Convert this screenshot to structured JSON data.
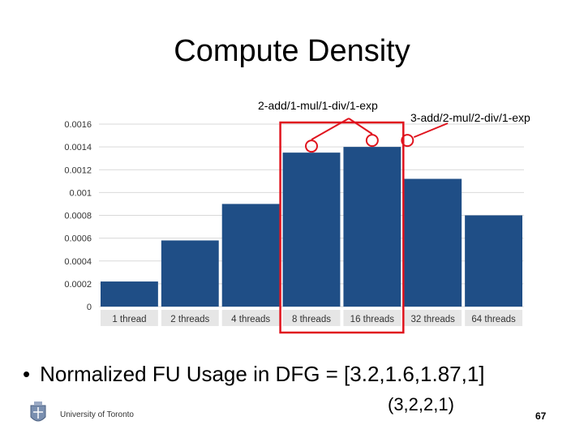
{
  "slide": {
    "title": "Compute Density",
    "annotation_left": "2-add/1-mul/1-div/1-exp",
    "annotation_right": "3-add/2-mul/2-div/1-exp",
    "bullet_marker": "•",
    "bullet": "Normalized FU Usage in DFG = [3.2,1.6,1.87,1]",
    "paren_values": "(3,2,2,1)",
    "university": "University of Toronto",
    "page_number": "67"
  },
  "colors": {
    "bar": "#1f4e86",
    "highlight": "#e0141e",
    "grid": "#d9d9d9",
    "label_box": "#e6e6e6"
  },
  "chart_data": {
    "type": "bar",
    "title": "",
    "ylim": [
      0,
      0.0016
    ],
    "yticks": [
      "0.0016",
      "0.0014",
      "0.0012",
      "0.001",
      "0.0008",
      "0.0006",
      "0.0004",
      "0.0002",
      "0"
    ],
    "grid": true,
    "categories": [
      "1 thread",
      "2 threads",
      "4 threads",
      "8 threads",
      "16 threads",
      "32 threads",
      "64 threads"
    ],
    "series": [
      {
        "values": [
          0.00022,
          0.00058,
          0.0009,
          0.00135,
          0.0014,
          0.00112,
          0.0008
        ]
      }
    ],
    "highlighted_categories": [
      "8 threads",
      "16 threads"
    ]
  }
}
